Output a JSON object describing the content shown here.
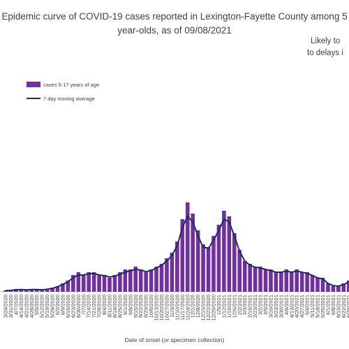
{
  "chart_data": {
    "type": "bar",
    "title": [
      "Epidemic curve of COVID-19 cases reported in Lexington-Fayette County among 5",
      "year-olds, as of 09/08/2021"
    ],
    "annotation": [
      "Likely to",
      "to delays i"
    ],
    "x_label": "Date of onset (or specimen collection)",
    "categories": [
      "3/24/2020",
      "3/31/2020",
      "4/7/2020",
      "4/14/2020",
      "4/21/2020",
      "4/28/2020",
      "5/5/2020",
      "5/12/2020",
      "5/19/2020",
      "5/26/2020",
      "6/2/2020",
      "6/9/2020",
      "6/16/2020",
      "6/23/2020",
      "6/30/2020",
      "7/7/2020",
      "7/14/2020",
      "7/21/2020",
      "7/28/2020",
      "8/4/2020",
      "8/11/2020",
      "8/18/2020",
      "8/25/2020",
      "9/1/2020",
      "9/8/2020",
      "9/15/2020",
      "9/22/2020",
      "9/29/2020",
      "10/6/2020",
      "10/13/2020",
      "10/20/2020",
      "10/27/2020",
      "11/3/2020",
      "11/10/2020",
      "11/17/2020",
      "11/24/2020",
      "12/1/2020",
      "12/8/2020",
      "12/15/2020",
      "12/22/2020",
      "12/29/2020",
      "1/5/2021",
      "1/12/2021",
      "1/19/2021",
      "1/26/2021",
      "2/2/2021",
      "2/9/2021",
      "2/16/2021",
      "2/23/2021",
      "3/2/2021",
      "3/9/2021",
      "3/16/2021",
      "3/23/2021",
      "3/30/2021",
      "4/6/2021",
      "4/13/2021",
      "4/20/2021",
      "4/27/2021",
      "5/4/2021",
      "5/11/2021",
      "5/18/2021",
      "5/25/2021",
      "6/1/2021",
      "6/8/2021",
      "6/15/2021",
      "6/22/2021",
      "6/29/2021"
    ],
    "series": [
      {
        "name": "cases 5-17 years of age",
        "type": "bar",
        "color": "#7030a0",
        "values": [
          0.5,
          0.5,
          1,
          1,
          0.5,
          1,
          1,
          0.5,
          1,
          1.5,
          2,
          3,
          4,
          6,
          7,
          6,
          7,
          7,
          6,
          6,
          5,
          6,
          7,
          8,
          8,
          9,
          8,
          7,
          8,
          9,
          10,
          12,
          14,
          18,
          26,
          32,
          28,
          22,
          17,
          16,
          20,
          24,
          29,
          27,
          21,
          15,
          11,
          10,
          9,
          9,
          8,
          8,
          7,
          7,
          8,
          7,
          8,
          7,
          7,
          6,
          5,
          5,
          3,
          2,
          2,
          3,
          4
        ]
      },
      {
        "name": "7 day moving average",
        "type": "line",
        "color": "#1f2a5e",
        "values": [
          0.4,
          0.5,
          0.7,
          0.8,
          0.7,
          0.8,
          0.8,
          0.7,
          0.9,
          1.2,
          1.8,
          2.6,
          3.6,
          5,
          6,
          6,
          6.5,
          6.5,
          6,
          5.8,
          5.3,
          5.6,
          6.3,
          7,
          7.5,
          8,
          7.8,
          7.2,
          7.6,
          8.5,
          9.5,
          11,
          13,
          16.5,
          23,
          27,
          25,
          20,
          16,
          15.5,
          18.5,
          22,
          26,
          25,
          20,
          14.5,
          11,
          9.5,
          8.8,
          8.5,
          8,
          7.6,
          7,
          7,
          7.4,
          7,
          7.4,
          7,
          6.6,
          5.8,
          5,
          4.6,
          3,
          2.2,
          2,
          2.6,
          3.5
        ]
      }
    ],
    "ylim": [
      0,
      45
    ],
    "legend": "top-left"
  }
}
